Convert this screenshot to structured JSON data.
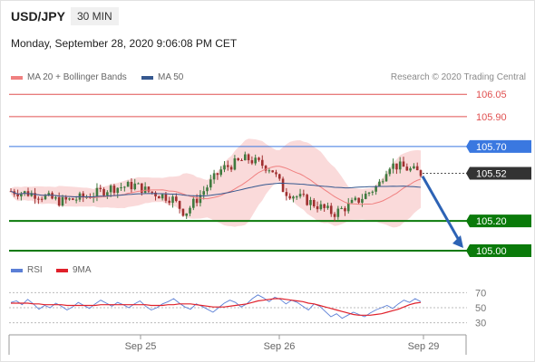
{
  "header": {
    "pair": "USD/JPY",
    "timeframe": "30 MIN",
    "datetime": "Monday, September 28, 2020 9:06:08 PM CET",
    "research": "Research © 2020 Trading Central"
  },
  "legend": {
    "main": [
      {
        "name": "MA 20 + Bollinger Bands",
        "color": "#f08080"
      },
      {
        "name": "MA 50",
        "color": "#36588f"
      }
    ],
    "rsi": [
      {
        "name": "RSI",
        "color": "#5b7fd6"
      },
      {
        "name": "9MA",
        "color": "#e0202a"
      }
    ]
  },
  "colors": {
    "resistance": "#e05050",
    "pivot": "#3a78e0",
    "support": "#0a7a0a",
    "last": "#333333",
    "arrow": "#2d63b5",
    "candle_up": "#3f7a3f",
    "candle_down": "#a03030",
    "band_fill": "#f9d4d4"
  },
  "chart_data": [
    {
      "type": "candlestick",
      "x_ticks": [
        "Sep 25",
        "Sep 26",
        "Sep 29"
      ],
      "price_range": [
        104.97,
        106.1
      ],
      "levels": [
        {
          "label": "106.05",
          "value": 106.05,
          "kind": "resistance"
        },
        {
          "label": "105.90",
          "value": 105.9,
          "kind": "resistance"
        },
        {
          "label": "105.70",
          "value": 105.7,
          "kind": "pivot"
        },
        {
          "label": "105.52",
          "value": 105.52,
          "kind": "last"
        },
        {
          "label": "105.20",
          "value": 105.2,
          "kind": "support"
        },
        {
          "label": "105.00",
          "value": 105.0,
          "kind": "support"
        }
      ],
      "forecast": {
        "from": 105.5,
        "to": 105.0
      }
    },
    {
      "type": "line",
      "name": "RSI",
      "y_ticks": [
        "70",
        "50",
        "30"
      ],
      "y_range": [
        20,
        80
      ],
      "series": [
        {
          "name": "RSI",
          "values": [
            57,
            59,
            54,
            61,
            55,
            48,
            53,
            50,
            56,
            52,
            47,
            51,
            57,
            53,
            49,
            55,
            60,
            56,
            52,
            57,
            54,
            50,
            55,
            59,
            52,
            47,
            50,
            55,
            58,
            62,
            56,
            51,
            48,
            55,
            52,
            48,
            44,
            50,
            56,
            60,
            57,
            51,
            55,
            62,
            67,
            63,
            58,
            64,
            61,
            55,
            60,
            57,
            52,
            47,
            55,
            52,
            45,
            38,
            42,
            36,
            40,
            44,
            41,
            38,
            43,
            47,
            50,
            53,
            49,
            55,
            60,
            57,
            62,
            58
          ]
        },
        {
          "name": "9MA",
          "values": [
            56,
            56,
            56,
            56,
            55,
            55,
            54,
            54,
            54,
            54,
            53,
            53,
            53,
            53,
            53,
            53,
            54,
            54,
            54,
            54,
            54,
            54,
            54,
            54,
            54,
            53,
            53,
            53,
            54,
            54,
            55,
            55,
            55,
            54,
            53,
            52,
            51,
            51,
            51,
            52,
            53,
            54,
            55,
            57,
            59,
            60,
            61,
            62,
            62,
            61,
            60,
            59,
            58,
            56,
            55,
            53,
            51,
            49,
            47,
            45,
            43,
            41,
            40,
            40,
            40,
            41,
            42,
            44,
            46,
            48,
            51,
            54,
            56,
            57
          ]
        }
      ]
    }
  ]
}
